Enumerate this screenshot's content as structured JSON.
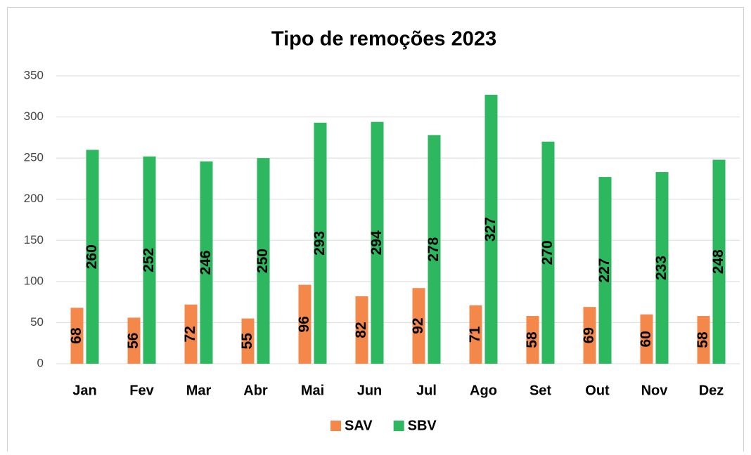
{
  "chart_data": {
    "type": "bar",
    "title": "Tipo de remoções 2023",
    "categories": [
      "Jan",
      "Fev",
      "Mar",
      "Abr",
      "Mai",
      "Jun",
      "Jul",
      "Ago",
      "Set",
      "Out",
      "Nov",
      "Dez"
    ],
    "series": [
      {
        "name": "SAV",
        "color": "#f4884a",
        "values": [
          68,
          56,
          72,
          55,
          96,
          82,
          92,
          71,
          58,
          69,
          60,
          58
        ]
      },
      {
        "name": "SBV",
        "color": "#2db75e",
        "values": [
          260,
          252,
          246,
          250,
          293,
          294,
          278,
          327,
          270,
          227,
          233,
          248
        ]
      }
    ],
    "ylim": [
      0,
      350
    ],
    "yticks": [
      0,
      50,
      100,
      150,
      200,
      250,
      300,
      350
    ],
    "grid": true,
    "legend": "bottom"
  }
}
